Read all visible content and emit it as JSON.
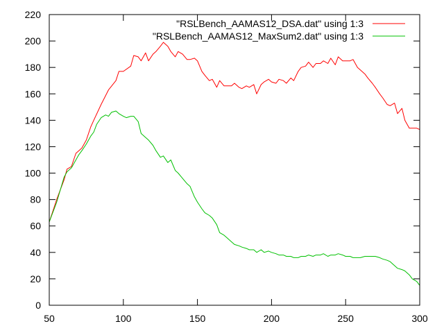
{
  "chart_data": {
    "type": "line",
    "title": "",
    "xlabel": "",
    "ylabel": "",
    "xlim": [
      50,
      300
    ],
    "ylim": [
      0,
      220
    ],
    "xticks": [
      50,
      100,
      150,
      200,
      250,
      300
    ],
    "yticks": [
      0,
      20,
      40,
      60,
      80,
      100,
      120,
      140,
      160,
      180,
      200,
      220
    ],
    "grid": false,
    "legend_position": "top-right",
    "series": [
      {
        "name": "\"RSLBench_AAMAS12_DSA.dat\" using 1:3",
        "color": "#ff0000",
        "x": [
          50,
          55,
          60,
          62,
          65,
          68,
          70,
          72,
          75,
          78,
          80,
          85,
          90,
          95,
          97,
          100,
          105,
          107,
          110,
          112,
          115,
          117,
          120,
          122,
          125,
          127,
          130,
          132,
          135,
          137,
          140,
          143,
          145,
          148,
          150,
          153,
          155,
          158,
          160,
          163,
          165,
          168,
          170,
          173,
          175,
          178,
          180,
          183,
          185,
          188,
          190,
          193,
          195,
          198,
          200,
          203,
          205,
          208,
          210,
          213,
          215,
          218,
          220,
          223,
          225,
          228,
          230,
          233,
          235,
          238,
          240,
          243,
          245,
          248,
          250,
          253,
          255,
          258,
          260,
          263,
          265,
          268,
          270,
          273,
          275,
          278,
          280,
          283,
          285,
          288,
          290,
          293,
          295,
          298,
          300
        ],
        "values": [
          63,
          80,
          95,
          103,
          105,
          115,
          117,
          119,
          125,
          135,
          140,
          152,
          163,
          170,
          177,
          177,
          181,
          189,
          188,
          185,
          191,
          185,
          190,
          192,
          196,
          199,
          196,
          192,
          188,
          192,
          190,
          186,
          186,
          187,
          185,
          177,
          174,
          170,
          171,
          165,
          170,
          166,
          166,
          166,
          168,
          165,
          164,
          166,
          165,
          167,
          160,
          167,
          169,
          171,
          169,
          168,
          171,
          170,
          168,
          172,
          170,
          177,
          180,
          181,
          184,
          180,
          183,
          183,
          185,
          183,
          187,
          182,
          188,
          185,
          185,
          185,
          186,
          180,
          178,
          175,
          172,
          168,
          165,
          160,
          157,
          152,
          151,
          153,
          145,
          149,
          140,
          134,
          134,
          134,
          133
        ]
      },
      {
        "name": "\"RSLBench_AAMAS12_MaxSum2.dat\" using 1:3",
        "color": "#00c000",
        "x": [
          50,
          55,
          60,
          62,
          65,
          68,
          70,
          72,
          75,
          78,
          80,
          82,
          85,
          88,
          90,
          92,
          95,
          97,
          100,
          102,
          105,
          107,
          110,
          112,
          115,
          117,
          120,
          122,
          125,
          127,
          130,
          132,
          135,
          137,
          140,
          143,
          145,
          148,
          150,
          153,
          155,
          158,
          160,
          163,
          165,
          168,
          170,
          173,
          175,
          178,
          180,
          183,
          185,
          188,
          190,
          193,
          195,
          198,
          200,
          203,
          205,
          208,
          210,
          213,
          215,
          218,
          220,
          223,
          225,
          228,
          230,
          233,
          235,
          238,
          240,
          243,
          245,
          248,
          250,
          253,
          255,
          258,
          260,
          263,
          265,
          268,
          270,
          273,
          275,
          278,
          280,
          283,
          285,
          288,
          290,
          293,
          295,
          298,
          300
        ],
        "values": [
          63,
          78,
          97,
          101,
          104,
          110,
          114,
          117,
          122,
          128,
          131,
          137,
          142,
          144,
          143,
          146,
          147,
          145,
          143,
          142,
          143,
          143,
          139,
          130,
          127,
          125,
          121,
          117,
          112,
          113,
          108,
          110,
          102,
          100,
          96,
          92,
          90,
          82,
          78,
          73,
          70,
          68,
          66,
          61,
          55,
          53,
          51,
          48,
          46,
          45,
          44,
          43,
          42,
          42,
          40,
          42,
          40,
          41,
          40,
          39,
          38,
          38,
          37,
          37,
          36,
          36,
          37,
          37,
          38,
          37,
          38,
          38,
          39,
          37,
          38,
          38,
          39,
          38,
          37,
          37,
          36,
          36,
          36,
          37,
          37,
          37,
          37,
          36,
          35,
          34,
          33,
          30,
          28,
          27,
          26,
          23,
          20,
          18,
          15
        ]
      }
    ]
  }
}
